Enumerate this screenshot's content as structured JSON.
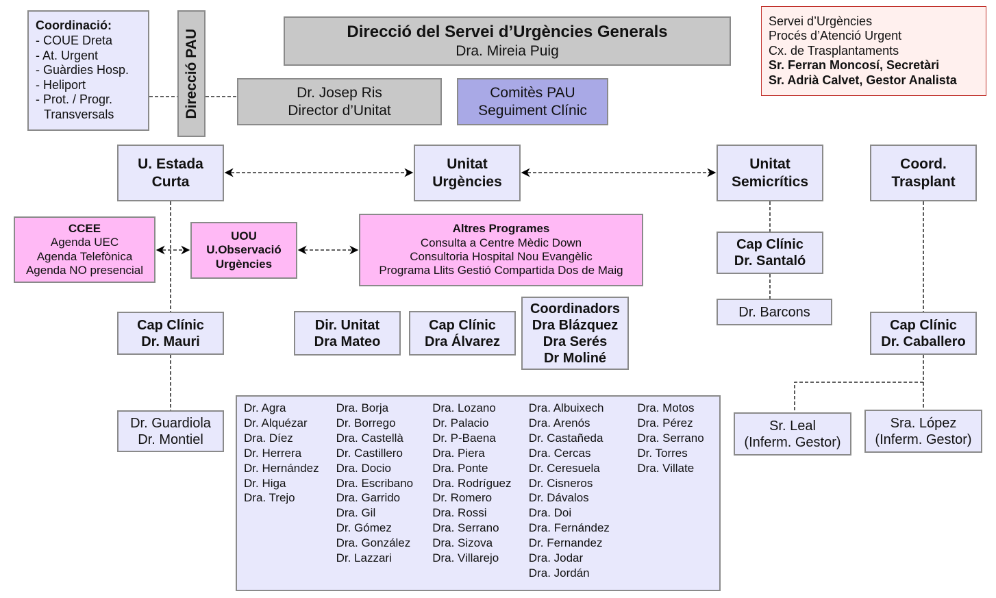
{
  "colors": {
    "unit": "#e8e8fc",
    "direction": "#c8c8c8",
    "committee": "#a9a9e6",
    "program": "#ffb9f5",
    "info": "#fff0ee",
    "info_border": "#c0302a"
  },
  "coordination": {
    "title": "Coordinació:",
    "items": [
      "- COUE Dreta",
      "- At. Urgent",
      "- Guàrdies Hosp.",
      "- Heliport",
      "- Prot. / Progr.",
      "Transversals"
    ]
  },
  "pau": "Direcció PAU",
  "direction": {
    "title": "Direcció del Servei d’Urgències Generals",
    "name": "Dra. Mireia Puig"
  },
  "unit_director": {
    "name": "Dr. Josep Ris",
    "role": "Director d’Unitat"
  },
  "committees": {
    "line1": "Comitès PAU",
    "line2": "Seguiment Clínic"
  },
  "info": {
    "lines": [
      "Servei d’Urgències",
      "Procés d’Atenció Urgent",
      "Cx. de Trasplantaments"
    ],
    "bold_lines": [
      "Sr. Ferran Moncosí, Secretàri",
      "Sr. Adrià Calvet, Gestor Analista"
    ]
  },
  "units": {
    "estada": [
      "U. Estada",
      "Curta"
    ],
    "urgencies": [
      "Unitat",
      "Urgències"
    ],
    "semicritics": [
      "Unitat",
      "Semicrítics"
    ],
    "trasplant": [
      "Coord.",
      "Trasplant"
    ]
  },
  "ccee": {
    "title": "CCEE",
    "items": [
      "Agenda UEC",
      "Agenda Telefònica",
      "Agenda NO presencial"
    ]
  },
  "uou": [
    "UOU",
    "U.Observació",
    "Urgències"
  ],
  "altres": {
    "title": "Altres Programes",
    "items": [
      "Consulta a Centre Mèdic Down",
      "Consultoria Hospital Nou Evangèlic",
      "Programa Llits Gestió Compartida Dos de Maig"
    ]
  },
  "cap_santalo": [
    "Cap Clínic",
    "Dr. Santaló"
  ],
  "barcons": "Dr. Barcons",
  "cap_mauri": [
    "Cap Clínic",
    "Dr. Mauri"
  ],
  "dir_mateo": [
    "Dir. Unitat",
    "Dra Mateo"
  ],
  "cap_alvarez": [
    "Cap Clínic",
    "Dra Álvarez"
  ],
  "coordinadors": [
    "Coordinadors",
    "Dra Blázquez",
    "Dra Serés",
    "Dr Moliné"
  ],
  "cap_caballero": [
    "Cap Clínic",
    "Dr. Caballero"
  ],
  "guardiola": [
    "Dr. Guardiola",
    "Dr. Montiel"
  ],
  "leal": [
    "Sr. Leal",
    "(Inferm. Gestor)"
  ],
  "lopez": [
    "Sra. López",
    "(Inferm. Gestor)"
  ],
  "staff_columns": [
    [
      "Dr. Agra",
      "Dr. Alquézar",
      "Dra. Díez",
      "Dr. Herrera",
      "Dr. Hernández",
      "Dr. Higa",
      "Dra. Trejo"
    ],
    [
      "Dra. Borja",
      "Dr. Borrego",
      "Dra. Castellà",
      "Dr. Castillero",
      "Dra. Docio",
      "Dra. Escribano",
      "Dra. Garrido",
      "Dra. Gil",
      "Dr. Gómez",
      "Dra. González",
      "Dr. Lazzari"
    ],
    [
      "Dra. Lozano",
      "Dr. Palacio",
      "Dr. P-Baena",
      "Dra. Piera",
      "Dra. Ponte",
      "Dra. Rodríguez",
      "Dr. Romero",
      "Dra. Rossi",
      "Dra. Serrano",
      "Dra. Sizova",
      "Dra. Villarejo"
    ],
    [
      "Dra. Albuixech",
      "Dra. Arenós",
      "Dr. Castañeda",
      "Dra. Cercas",
      "Dr. Ceresuela",
      "Dr. Cisneros",
      "Dr. Dávalos",
      "Dra. Doi",
      "Dra. Fernández",
      "Dr. Fernandez",
      "Dra. Jodar",
      "Dra. Jordán"
    ],
    [
      "Dra. Motos",
      "Dra. Pérez",
      "Dra. Serrano",
      "Dr. Torres",
      "Dra. Villate"
    ]
  ]
}
